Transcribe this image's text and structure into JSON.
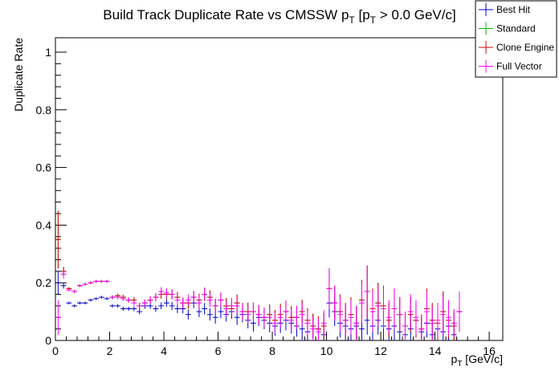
{
  "chart_data": {
    "type": "scatter",
    "title": {
      "pre": "Build Track Duplicate Rate vs CMSSW p",
      "sub1": "T",
      "mid": " [p",
      "sub2": "T",
      "post": " > 0.0 GeV/c]"
    },
    "xlabel": {
      "main": "p",
      "sub": "T",
      "post": " [GeV/c]"
    },
    "ylabel": "Duplicate Rate",
    "xlim": [
      0,
      16.5
    ],
    "ylim": [
      0,
      1.05
    ],
    "xticks": [
      "0",
      "2",
      "4",
      "6",
      "8",
      "10",
      "12",
      "14",
      "16"
    ],
    "yticks": [
      "0",
      "0.2",
      "0.4",
      "0.6",
      "0.8",
      "1"
    ],
    "bin_width": 0.2,
    "legend_position": "top-right",
    "legend": [
      "Best Hit",
      "Standard",
      "Clone Engine",
      "Full Vector"
    ],
    "colors": {
      "Best Hit": "#0000cc",
      "Standard": "#00bb00",
      "Clone Engine": "#dd0000",
      "Full Vector": "#ff00ff"
    },
    "series": [
      {
        "name": "Best Hit",
        "x": [
          0.1,
          0.3,
          0.5,
          0.7,
          0.9,
          1.1,
          1.3,
          1.5,
          1.7,
          1.9,
          2.1,
          2.3,
          2.5,
          2.7,
          2.9,
          3.1,
          3.3,
          3.5,
          3.7,
          3.9,
          4.1,
          4.3,
          4.5,
          4.7,
          4.9,
          5.1,
          5.3,
          5.5,
          5.7,
          5.9,
          6.1,
          6.3,
          6.5,
          6.7,
          6.9,
          7.1,
          7.3,
          7.5,
          7.7,
          7.9,
          8.1,
          8.3,
          8.5,
          8.7,
          8.9,
          9.1,
          9.3,
          9.5,
          9.7,
          9.9,
          10.1,
          10.3,
          10.5,
          10.7,
          10.9,
          11.1,
          11.3,
          11.5,
          11.7,
          11.9,
          12.1,
          12.3,
          12.5,
          12.7,
          12.9,
          13.1,
          13.3,
          13.5,
          13.7,
          13.9,
          14.1,
          14.3,
          14.5,
          14.7,
          14.9
        ],
        "y": [
          0.2,
          0.19,
          0.13,
          0.12,
          0.13,
          0.13,
          0.14,
          0.145,
          0.15,
          0.145,
          0.12,
          0.12,
          0.11,
          0.11,
          0.11,
          0.1,
          0.12,
          0.12,
          0.11,
          0.12,
          0.13,
          0.12,
          0.11,
          0.11,
          0.09,
          0.13,
          0.1,
          0.11,
          0.09,
          0.08,
          0.1,
          0.09,
          0.1,
          0.08,
          0.09,
          0.07,
          0.06,
          0.08,
          0.07,
          0.06,
          0.05,
          0.06,
          0.07,
          0.06,
          0.05,
          0.04,
          0.03,
          0.05,
          0.04,
          0.02,
          0.13,
          0.1,
          0.06,
          0.05,
          0.04,
          0.05,
          0.04,
          0.07,
          0.05,
          0.07,
          0.05,
          0.04,
          0.05,
          0.03,
          0.02,
          0.04,
          0.07,
          0.03,
          0.06,
          0.02,
          0.04,
          0.03,
          0.05,
          0.02,
          0.1
        ],
        "err": [
          0.04,
          0.01,
          0.005,
          0.005,
          0.005,
          0.005,
          0.005,
          0.005,
          0.005,
          0.005,
          0.006,
          0.006,
          0.007,
          0.007,
          0.008,
          0.009,
          0.01,
          0.01,
          0.011,
          0.012,
          0.013,
          0.014,
          0.015,
          0.016,
          0.017,
          0.018,
          0.019,
          0.02,
          0.021,
          0.022,
          0.023,
          0.024,
          0.025,
          0.026,
          0.027,
          0.028,
          0.029,
          0.03,
          0.031,
          0.032,
          0.033,
          0.034,
          0.035,
          0.036,
          0.037,
          0.038,
          0.039,
          0.04,
          0.041,
          0.042,
          0.05,
          0.05,
          0.05,
          0.05,
          0.05,
          0.05,
          0.05,
          0.05,
          0.05,
          0.05,
          0.05,
          0.05,
          0.05,
          0.05,
          0.05,
          0.05,
          0.05,
          0.05,
          0.05,
          0.05,
          0.05,
          0.05,
          0.05,
          0.05,
          0.05
        ]
      },
      {
        "name": "Standard",
        "x": [
          0.1,
          0.3,
          0.5,
          0.7,
          0.9,
          1.1,
          1.3,
          1.5,
          1.7,
          1.9,
          2.1,
          2.3,
          2.5,
          2.7,
          2.9,
          3.1,
          3.3,
          3.5,
          3.7,
          3.9,
          4.1,
          4.3,
          4.5,
          4.7,
          4.9,
          5.1,
          5.3,
          5.5,
          5.7,
          5.9,
          6.1,
          6.3,
          6.5,
          6.7,
          6.9,
          7.1,
          7.3,
          7.5,
          7.7,
          7.9,
          8.1,
          8.3,
          8.5,
          8.7,
          8.9,
          9.1,
          9.3,
          9.5,
          9.7,
          9.9,
          10.1,
          10.3,
          10.5,
          10.7,
          10.9,
          11.1,
          11.3,
          11.5,
          11.7,
          11.9,
          12.1,
          12.3,
          12.5,
          12.7,
          12.9,
          13.1,
          13.3,
          13.5,
          13.7,
          13.9,
          14.1,
          14.3,
          14.5,
          14.7,
          14.9
        ],
        "y": [
          0.35,
          0.24,
          0.18,
          0.17,
          0.19,
          0.195,
          0.2,
          0.205,
          0.205,
          0.205,
          0.15,
          0.155,
          0.15,
          0.14,
          0.14,
          0.12,
          0.13,
          0.14,
          0.15,
          0.16,
          0.16,
          0.16,
          0.15,
          0.13,
          0.13,
          0.15,
          0.14,
          0.16,
          0.15,
          0.12,
          0.14,
          0.12,
          0.11,
          0.13,
          0.1,
          0.1,
          0.1,
          0.09,
          0.08,
          0.09,
          0.07,
          0.09,
          0.1,
          0.08,
          0.08,
          0.1,
          0.07,
          0.05,
          0.04,
          0.05,
          0.18,
          0.13,
          0.1,
          0.07,
          0.09,
          0.06,
          0.14,
          0.17,
          0.11,
          0.13,
          0.12,
          0.07,
          0.11,
          0.09,
          0.05,
          0.09,
          0.07,
          0.04,
          0.11,
          0.07,
          0.06,
          0.1,
          0.07,
          0.05,
          0.1
        ],
        "err": [
          0.1,
          0.015,
          0.005,
          0.005,
          0.005,
          0.005,
          0.005,
          0.005,
          0.005,
          0.005,
          0.007,
          0.007,
          0.008,
          0.009,
          0.01,
          0.011,
          0.012,
          0.013,
          0.014,
          0.015,
          0.016,
          0.017,
          0.018,
          0.019,
          0.02,
          0.021,
          0.022,
          0.023,
          0.024,
          0.025,
          0.026,
          0.027,
          0.028,
          0.029,
          0.03,
          0.031,
          0.032,
          0.033,
          0.034,
          0.035,
          0.036,
          0.037,
          0.038,
          0.039,
          0.04,
          0.041,
          0.042,
          0.043,
          0.044,
          0.045,
          0.07,
          0.06,
          0.06,
          0.06,
          0.06,
          0.06,
          0.07,
          0.09,
          0.07,
          0.07,
          0.07,
          0.06,
          0.07,
          0.06,
          0.05,
          0.06,
          0.06,
          0.05,
          0.07,
          0.06,
          0.06,
          0.07,
          0.06,
          0.05,
          0.07
        ]
      },
      {
        "name": "Clone Engine",
        "x": [
          0.1,
          0.3,
          0.5,
          0.7,
          0.9,
          1.1,
          1.3,
          1.5,
          1.7,
          1.9,
          2.1,
          2.3,
          2.5,
          2.7,
          2.9,
          3.1,
          3.3,
          3.5,
          3.7,
          3.9,
          4.1,
          4.3,
          4.5,
          4.7,
          4.9,
          5.1,
          5.3,
          5.5,
          5.7,
          5.9,
          6.1,
          6.3,
          6.5,
          6.7,
          6.9,
          7.1,
          7.3,
          7.5,
          7.7,
          7.9,
          8.1,
          8.3,
          8.5,
          8.7,
          8.9,
          9.1,
          9.3,
          9.5,
          9.7,
          9.9,
          10.1,
          10.3,
          10.5,
          10.7,
          10.9,
          11.1,
          11.3,
          11.5,
          11.7,
          11.9,
          12.1,
          12.3,
          12.5,
          12.7,
          12.9,
          13.1,
          13.3,
          13.5,
          13.7,
          13.9,
          14.1,
          14.3,
          14.5,
          14.7,
          14.9
        ],
        "y": [
          0.35,
          0.24,
          0.18,
          0.17,
          0.19,
          0.195,
          0.2,
          0.205,
          0.205,
          0.205,
          0.15,
          0.155,
          0.15,
          0.14,
          0.14,
          0.12,
          0.13,
          0.14,
          0.15,
          0.16,
          0.16,
          0.16,
          0.15,
          0.13,
          0.13,
          0.15,
          0.14,
          0.16,
          0.15,
          0.12,
          0.14,
          0.12,
          0.11,
          0.13,
          0.1,
          0.1,
          0.1,
          0.09,
          0.08,
          0.09,
          0.07,
          0.09,
          0.1,
          0.08,
          0.08,
          0.1,
          0.07,
          0.05,
          0.04,
          0.05,
          0.18,
          0.13,
          0.1,
          0.07,
          0.09,
          0.06,
          0.14,
          0.17,
          0.11,
          0.13,
          0.12,
          0.07,
          0.11,
          0.09,
          0.05,
          0.09,
          0.07,
          0.04,
          0.11,
          0.07,
          0.06,
          0.1,
          0.07,
          0.05,
          0.1
        ],
        "err": [
          0.1,
          0.015,
          0.005,
          0.005,
          0.005,
          0.005,
          0.005,
          0.005,
          0.005,
          0.005,
          0.007,
          0.007,
          0.008,
          0.009,
          0.01,
          0.011,
          0.012,
          0.013,
          0.014,
          0.015,
          0.016,
          0.017,
          0.018,
          0.019,
          0.02,
          0.021,
          0.022,
          0.023,
          0.024,
          0.025,
          0.026,
          0.027,
          0.028,
          0.029,
          0.03,
          0.031,
          0.032,
          0.033,
          0.034,
          0.035,
          0.036,
          0.037,
          0.038,
          0.039,
          0.04,
          0.041,
          0.042,
          0.043,
          0.044,
          0.045,
          0.07,
          0.06,
          0.06,
          0.06,
          0.06,
          0.06,
          0.07,
          0.09,
          0.07,
          0.07,
          0.07,
          0.06,
          0.07,
          0.06,
          0.05,
          0.06,
          0.06,
          0.05,
          0.07,
          0.06,
          0.06,
          0.07,
          0.06,
          0.05,
          0.07
        ]
      },
      {
        "name": "Full Vector",
        "x": [
          0.1,
          0.3,
          0.5,
          0.7,
          0.9,
          1.1,
          1.3,
          1.5,
          1.7,
          1.9,
          2.1,
          2.3,
          2.5,
          2.7,
          2.9,
          3.1,
          3.3,
          3.5,
          3.7,
          3.9,
          4.1,
          4.3,
          4.5,
          4.7,
          4.9,
          5.1,
          5.3,
          5.5,
          5.7,
          5.9,
          6.1,
          6.3,
          6.5,
          6.7,
          6.9,
          7.1,
          7.3,
          7.5,
          7.7,
          7.9,
          8.1,
          8.3,
          8.5,
          8.7,
          8.9,
          9.1,
          9.3,
          9.5,
          9.7,
          9.9,
          10.1,
          10.3,
          10.5,
          10.7,
          10.9,
          11.1,
          11.3,
          11.5,
          11.7,
          11.9,
          12.1,
          12.3,
          12.5,
          12.7,
          12.9,
          13.1,
          13.3,
          13.5,
          13.7,
          13.9,
          14.1,
          14.3,
          14.5,
          14.7,
          14.9
        ],
        "y": [
          0.08,
          0.23,
          0.175,
          0.17,
          0.19,
          0.195,
          0.2,
          0.205,
          0.205,
          0.205,
          0.15,
          0.15,
          0.145,
          0.14,
          0.13,
          0.12,
          0.13,
          0.14,
          0.15,
          0.17,
          0.165,
          0.16,
          0.14,
          0.13,
          0.14,
          0.15,
          0.13,
          0.16,
          0.14,
          0.12,
          0.14,
          0.11,
          0.12,
          0.12,
          0.1,
          0.09,
          0.1,
          0.09,
          0.08,
          0.08,
          0.06,
          0.08,
          0.1,
          0.07,
          0.08,
          0.09,
          0.06,
          0.04,
          0.03,
          0.06,
          0.18,
          0.13,
          0.09,
          0.07,
          0.08,
          0.06,
          0.13,
          0.17,
          0.1,
          0.12,
          0.11,
          0.08,
          0.11,
          0.09,
          0.05,
          0.1,
          0.08,
          0.04,
          0.1,
          0.06,
          0.07,
          0.09,
          0.08,
          0.06,
          0.1
        ],
        "err": [
          0.06,
          0.015,
          0.005,
          0.005,
          0.005,
          0.005,
          0.005,
          0.005,
          0.005,
          0.005,
          0.007,
          0.007,
          0.008,
          0.009,
          0.01,
          0.011,
          0.012,
          0.013,
          0.014,
          0.015,
          0.016,
          0.017,
          0.018,
          0.019,
          0.02,
          0.021,
          0.022,
          0.023,
          0.024,
          0.025,
          0.026,
          0.027,
          0.028,
          0.029,
          0.03,
          0.031,
          0.032,
          0.033,
          0.034,
          0.035,
          0.036,
          0.037,
          0.038,
          0.039,
          0.04,
          0.041,
          0.042,
          0.043,
          0.044,
          0.045,
          0.07,
          0.06,
          0.06,
          0.06,
          0.06,
          0.06,
          0.07,
          0.09,
          0.07,
          0.07,
          0.07,
          0.06,
          0.07,
          0.06,
          0.05,
          0.06,
          0.06,
          0.05,
          0.07,
          0.06,
          0.06,
          0.07,
          0.06,
          0.05,
          0.07
        ]
      }
    ]
  }
}
